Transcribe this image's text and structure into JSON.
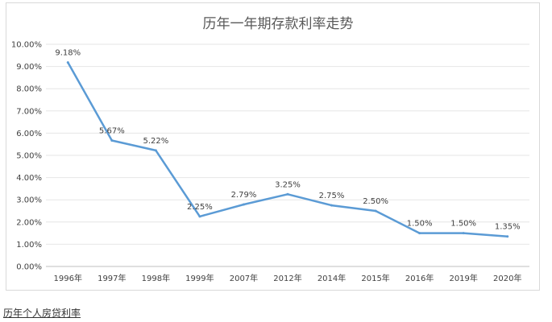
{
  "chart_data": {
    "type": "line",
    "title": "历年一年期存款利率走势",
    "categories": [
      "1996年",
      "1997年",
      "1998年",
      "1999年",
      "2007年",
      "2012年",
      "2014年",
      "2015年",
      "2016年",
      "2019年",
      "2020年"
    ],
    "series": [
      {
        "values": [
          9.18,
          5.67,
          5.22,
          2.25,
          2.79,
          3.25,
          2.75,
          2.5,
          1.5,
          1.5,
          1.35
        ],
        "labels": [
          "9.18%",
          "5.67%",
          "5.22%",
          "2.25%",
          "2.79%",
          "3.25%",
          "2.75%",
          "2.50%",
          "1.50%",
          "1.50%",
          "1.35%"
        ],
        "color": "#5b9bd5"
      }
    ],
    "y_ticks": [
      "0.00%",
      "1.00%",
      "2.00%",
      "3.00%",
      "4.00%",
      "5.00%",
      "6.00%",
      "7.00%",
      "8.00%",
      "9.00%",
      "10.00%"
    ],
    "ylim": [
      0,
      10
    ],
    "grid": true,
    "legend": "none"
  },
  "caption": {
    "link_text": "历年个人房贷利率"
  }
}
